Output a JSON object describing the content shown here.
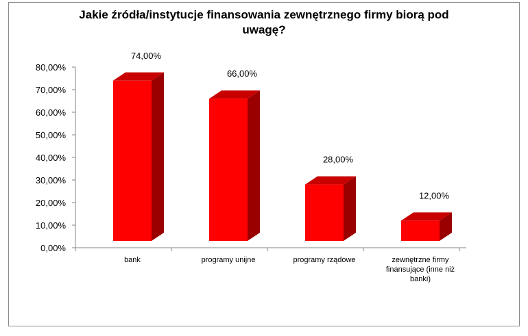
{
  "chart_data": {
    "type": "bar",
    "title": "Jakie źródła/instytucje finansowania zewnętrznego firmy biorą pod uwagę?",
    "title_lines": [
      "Jakie źródła/instytucje finansowania  zewnętrznego firmy biorą pod",
      "uwagę?"
    ],
    "categories": [
      "bank",
      "programy unijne",
      "programy rządowe",
      "zewnętrzne firmy finansujące (inne niż banki)"
    ],
    "category_lines": [
      [
        "bank"
      ],
      [
        "programy unijne"
      ],
      [
        "programy rządowe"
      ],
      [
        "zewnętrzne firmy",
        "finansujące (inne niż",
        "banki)"
      ]
    ],
    "values": [
      74,
      66,
      28,
      12
    ],
    "value_labels": [
      "74,00%",
      "66,00%",
      "28,00%",
      "12,00%"
    ],
    "y_ticks": [
      "0,00%",
      "10,00%",
      "20,00%",
      "30,00%",
      "40,00%",
      "50,00%",
      "60,00%",
      "70,00%",
      "80,00%"
    ],
    "ylim": [
      0,
      80
    ],
    "xlabel": "",
    "ylabel": "",
    "grid": false,
    "legend": "none",
    "bar_color": "#ff0000",
    "bar_top_color": "#c80000",
    "bar_side_color": "#9a0000"
  }
}
